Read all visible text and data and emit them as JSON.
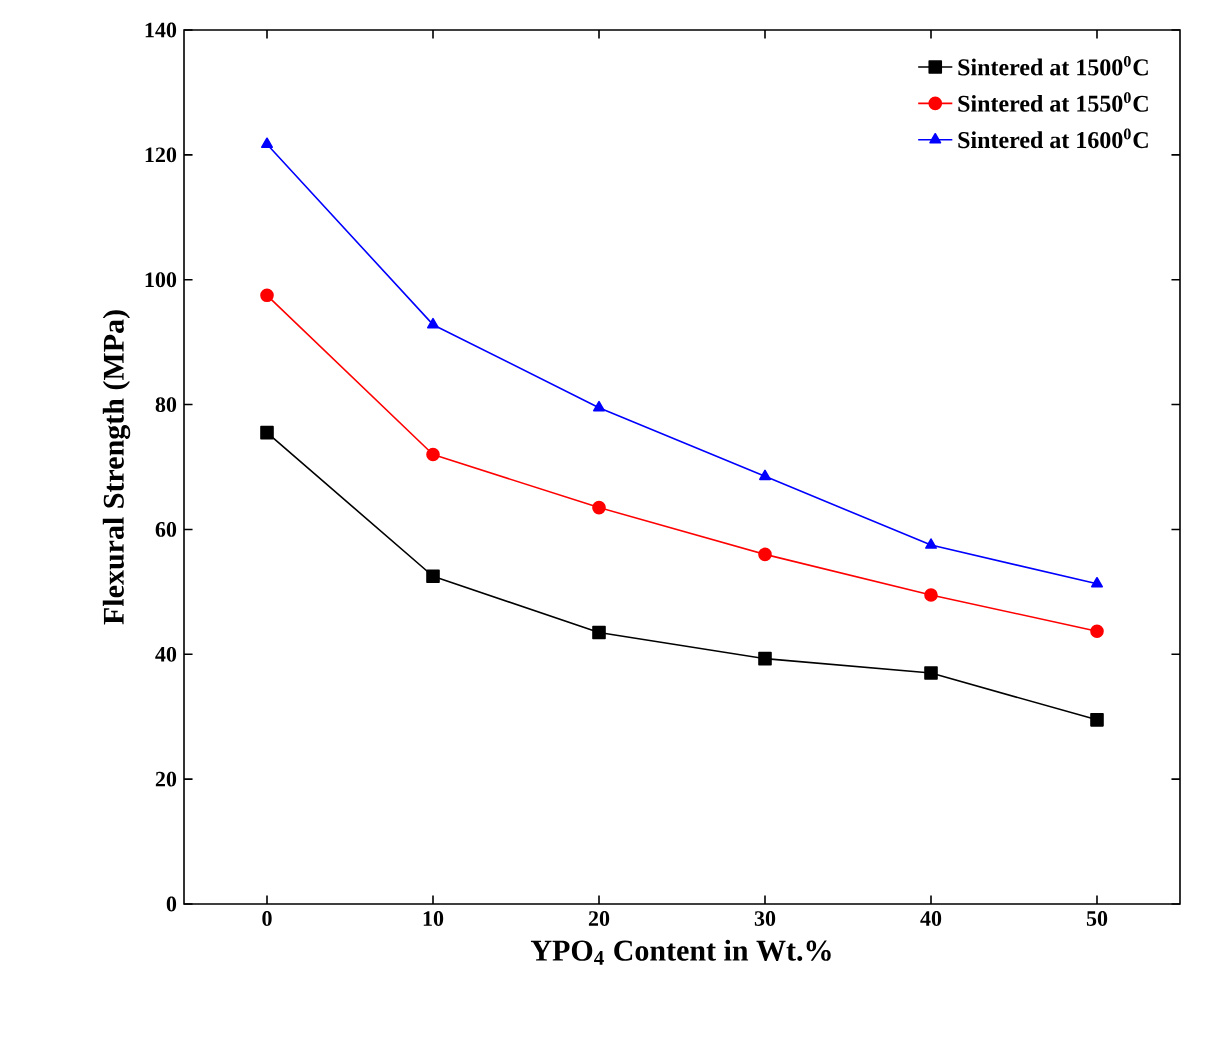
{
  "chart_data": {
    "type": "line",
    "xlabel": "YPO$_{4}$ Content in Wt.%",
    "ylabel": "Flexural Strength (MPa)",
    "x": [
      0,
      10,
      20,
      30,
      40,
      50
    ],
    "series": [
      {
        "name": "Sintered at 1500$^{0}$C",
        "color": "#000000",
        "marker": "square",
        "values": [
          75.5,
          52.5,
          43.5,
          39.3,
          37,
          29.5
        ]
      },
      {
        "name": "Sintered at 1550$^{0}$C",
        "color": "#ff0000",
        "marker": "circle",
        "values": [
          97.5,
          72,
          63.5,
          56,
          49.5,
          43.7
        ]
      },
      {
        "name": "Sintered at 1600$^{0}$C",
        "color": "#0000ff",
        "marker": "triangle",
        "values": [
          121.7,
          92.8,
          79.5,
          68.5,
          57.5,
          51.3
        ]
      }
    ],
    "xlim": [
      -5,
      55
    ],
    "ylim": [
      0,
      140
    ],
    "xticks": [
      0,
      10,
      20,
      30,
      40,
      50
    ],
    "yticks": [
      0,
      20,
      40,
      60,
      80,
      100,
      120,
      140
    ],
    "legend": "top right",
    "grid": false,
    "line_style": "solid"
  }
}
